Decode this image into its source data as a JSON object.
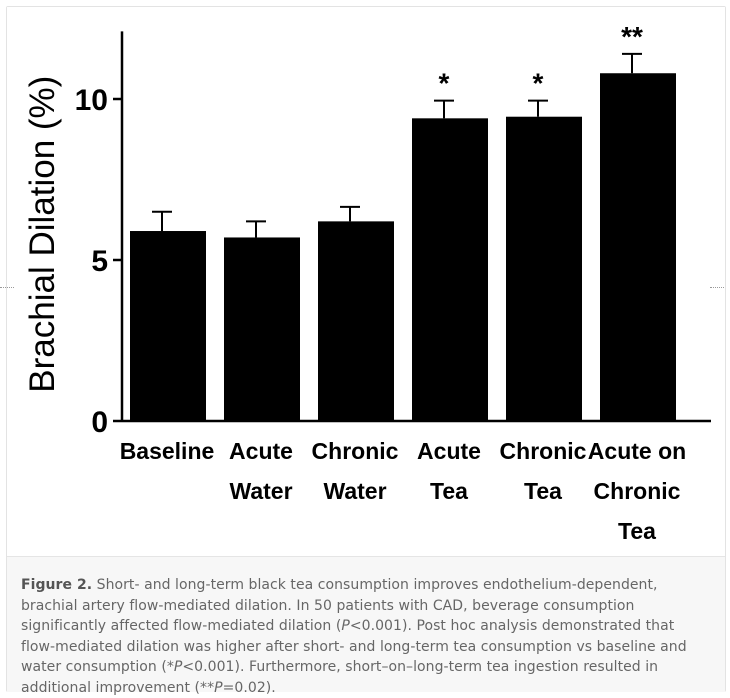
{
  "chart_data": {
    "type": "bar",
    "ylabel": "Brachial Dilation (%)",
    "xlabel": "",
    "ylim": [
      0,
      12.1
    ],
    "yticks": [
      "0",
      "5",
      "10"
    ],
    "categories": [
      [
        "Baseline"
      ],
      [
        "Acute",
        "Water"
      ],
      [
        "Chronic",
        "Water"
      ],
      [
        "Acute",
        "Tea"
      ],
      [
        "Chronic",
        "Tea"
      ],
      [
        "Acute on",
        "Chronic",
        "Tea"
      ]
    ],
    "values": [
      5.9,
      5.7,
      6.2,
      9.4,
      9.45,
      10.8
    ],
    "errors": [
      0.6,
      0.5,
      0.45,
      0.55,
      0.5,
      0.6
    ],
    "annotations": [
      "",
      "",
      "",
      "*",
      "*",
      "**"
    ],
    "bar_color": "#000000"
  },
  "caption": {
    "label": "Figure 2.",
    "text_parts": [
      " Short- and long-term black tea consumption improves endothelium-dependent, brachial artery flow-mediated dilation. In 50 patients with CAD, beverage consumption significantly affected flow-mediated dilation (",
      "P",
      "<0.001). Post hoc analysis demonstrated that flow-mediated dilation was higher after short- and long-term tea consumption vs baseline and water consumption (*",
      "P",
      "<0.001). Furthermore, short–on–long-term tea ingestion resulted in additional improvement (**",
      "P",
      "=0.02)."
    ]
  }
}
